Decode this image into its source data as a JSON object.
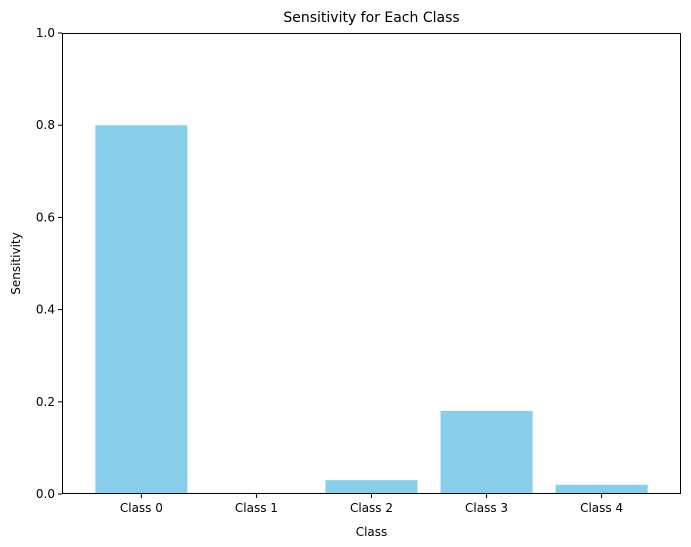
{
  "chart_data": {
    "type": "bar",
    "title": "Sensitivity for Each Class",
    "xlabel": "Class",
    "ylabel": "Sensitivity",
    "categories": [
      "Class 0",
      "Class 1",
      "Class 2",
      "Class 3",
      "Class 4"
    ],
    "values": [
      0.8,
      0.0,
      0.03,
      0.18,
      0.02
    ],
    "ylim": [
      0,
      1
    ],
    "yticks": [
      0.0,
      0.2,
      0.4,
      0.6,
      0.8,
      1.0
    ],
    "ytick_labels": [
      "0.0",
      "0.2",
      "0.4",
      "0.6",
      "0.8",
      "1.0"
    ],
    "grid": false,
    "bar_color": "#87ceeb"
  }
}
